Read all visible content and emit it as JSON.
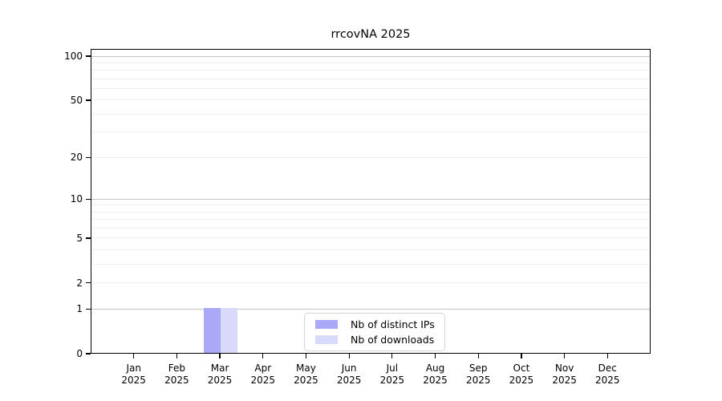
{
  "chart_data": {
    "type": "bar",
    "title": "rrcovNA 2025",
    "categories": [
      "Jan",
      "Feb",
      "Mar",
      "Apr",
      "May",
      "Jun",
      "Jul",
      "Aug",
      "Sep",
      "Oct",
      "Nov",
      "Dec"
    ],
    "category_year_label": "2025",
    "series": [
      {
        "name": "Nb of distinct IPs",
        "color": "#a9a9f7",
        "values": [
          0,
          0,
          1,
          0,
          0,
          0,
          0,
          0,
          0,
          0,
          0,
          0
        ]
      },
      {
        "name": "Nb of downloads",
        "color": "#d9d9fa",
        "values": [
          0,
          0,
          1,
          0,
          0,
          0,
          0,
          0,
          0,
          0,
          0,
          0
        ]
      }
    ],
    "xlabel": "",
    "ylabel": "",
    "y_axis": {
      "scale": "log1p",
      "ylim": [
        0,
        112
      ],
      "tick_values": [
        0,
        1,
        2,
        5,
        10,
        20,
        50,
        100
      ],
      "tick_labels": [
        "0",
        "1",
        "2",
        "5",
        "10",
        "20",
        "50",
        "100"
      ]
    },
    "gridlines": {
      "major_values": [
        1,
        10,
        100
      ],
      "minor_values": [
        2,
        3,
        4,
        5,
        6,
        7,
        8,
        9,
        20,
        30,
        40,
        50,
        60,
        70,
        80,
        90
      ],
      "grid_on": true
    },
    "legend": {
      "position": "lower-center-inside",
      "entries": [
        "Nb of distinct IPs",
        "Nb of downloads"
      ]
    },
    "colors": {
      "axis": "#000000",
      "major_grid": "#c4c4c4",
      "minor_grid": "#efefef",
      "background": "#ffffff"
    }
  }
}
